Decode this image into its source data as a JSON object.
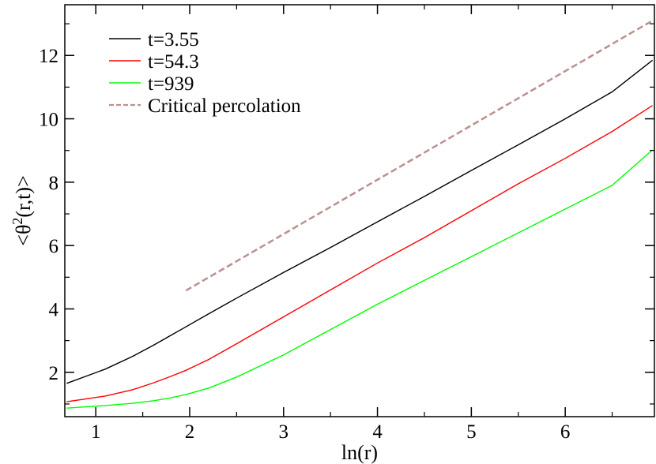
{
  "chart_data": {
    "type": "line",
    "xlabel": "ln(r)",
    "ylabel_parts": {
      "pre": "<θ",
      "sup": "2",
      "post": "(r,t)>"
    },
    "xlim": [
      0.67,
      6.95
    ],
    "ylim": [
      0.6,
      13.6
    ],
    "xticks": [
      1,
      2,
      3,
      4,
      5,
      6
    ],
    "yticks": [
      2,
      4,
      6,
      8,
      10,
      12
    ],
    "grid": false,
    "legend_position": "top-left",
    "series": [
      {
        "name": "t=3.55",
        "color": "#000000",
        "dash": "solid",
        "x": [
          0.69,
          1.1,
          1.39,
          1.61,
          1.79,
          1.95,
          2.2,
          2.5,
          3.0,
          3.5,
          4.0,
          4.5,
          5.0,
          5.5,
          6.0,
          6.5,
          6.93
        ],
        "y": [
          1.65,
          2.1,
          2.5,
          2.85,
          3.15,
          3.42,
          3.84,
          4.34,
          5.15,
          5.94,
          6.75,
          7.55,
          8.37,
          9.18,
          10.0,
          10.85,
          11.85
        ]
      },
      {
        "name": "t=54.3",
        "color": "#ff0000",
        "dash": "solid",
        "x": [
          0.69,
          1.1,
          1.39,
          1.61,
          1.79,
          1.95,
          2.2,
          2.5,
          3.0,
          3.5,
          4.0,
          4.5,
          5.0,
          5.5,
          6.0,
          6.5,
          6.93
        ],
        "y": [
          1.07,
          1.25,
          1.45,
          1.66,
          1.86,
          2.05,
          2.4,
          2.9,
          3.75,
          4.6,
          5.45,
          6.25,
          7.1,
          7.95,
          8.75,
          9.6,
          10.42
        ]
      },
      {
        "name": "t=939",
        "color": "#00ff00",
        "dash": "solid",
        "x": [
          0.69,
          1.1,
          1.39,
          1.61,
          1.79,
          1.95,
          2.2,
          2.5,
          3.0,
          3.5,
          4.0,
          4.5,
          5.0,
          5.5,
          6.0,
          6.5,
          6.93
        ],
        "y": [
          0.87,
          0.95,
          1.02,
          1.1,
          1.19,
          1.29,
          1.5,
          1.85,
          2.55,
          3.35,
          4.15,
          4.9,
          5.65,
          6.4,
          7.15,
          7.9,
          9.02
        ]
      },
      {
        "name": "Critical percolation",
        "color": "#bc8f8f",
        "dash": "dashed",
        "x": [
          1.96,
          6.93
        ],
        "y": [
          4.58,
          13.1
        ]
      }
    ]
  }
}
